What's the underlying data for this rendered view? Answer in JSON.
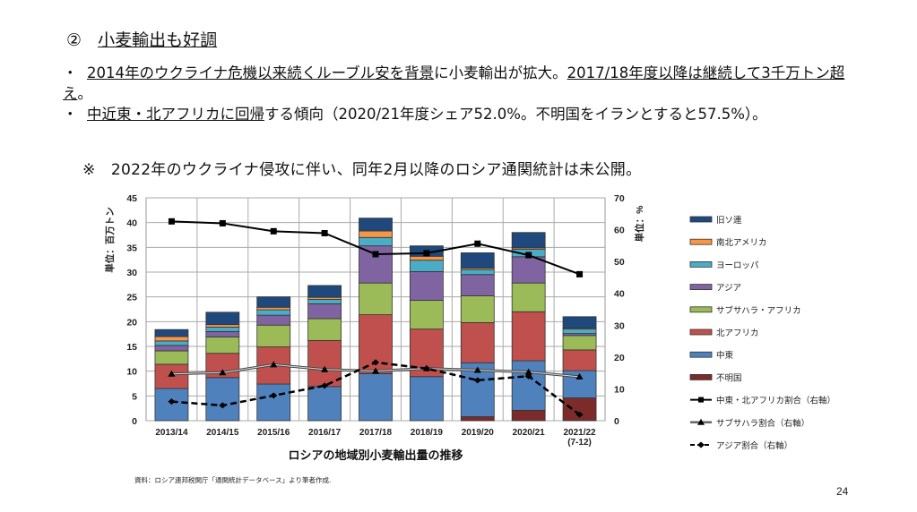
{
  "heading": {
    "number": "②",
    "title": "小麦輸出も好調"
  },
  "bullets": [
    {
      "marker": "・",
      "parts": [
        {
          "text": "2014年のウクライナ危機以来続くルーブル安を背景",
          "u": true
        },
        {
          "text": "に小麦輸出が拡大。",
          "u": false
        },
        {
          "text": "2017/18年度以降は継続して3千万トン超え",
          "u": true
        },
        {
          "text": "。",
          "u": false
        }
      ]
    },
    {
      "marker": "・",
      "parts": [
        {
          "text": "中近東・北アフリカに回帰",
          "u": true
        },
        {
          "text": "する傾向（2020/21年度シェア52.0%。不明国をイランとすると57.5%）。",
          "u": false
        }
      ]
    }
  ],
  "note": "※　2022年のウクライナ侵攻に伴い、同年2月以降のロシア通関統計は未公開。",
  "source": "資料：ロシア連邦税関庁「通関統計データベース」より筆者作成.",
  "page_number": "24",
  "chart_data": {
    "type": "bar",
    "stacked": true,
    "title": "ロシアの地域別小麦輸出量の推移",
    "ylabel": "単位：百万トン",
    "y2label": "単位：%",
    "ylim": [
      0,
      45
    ],
    "y2lim": [
      0,
      70
    ],
    "yticks": [
      0,
      5,
      10,
      15,
      20,
      25,
      30,
      35,
      40,
      45
    ],
    "y2ticks": [
      0,
      10,
      20,
      30,
      40,
      50,
      60,
      70
    ],
    "grid": true,
    "legend_position": "right",
    "categories": [
      "2013/14",
      "2014/15",
      "2015/16",
      "2016/17",
      "2017/18",
      "2018/19",
      "2019/20",
      "2020/21",
      "2021/22\n(7-12)"
    ],
    "series": [
      {
        "name": "不明国",
        "color": "#7b2c2a",
        "values": [
          0,
          0,
          0,
          0,
          0,
          0,
          0.8,
          2.1,
          4.6
        ]
      },
      {
        "name": "中東",
        "color": "#4f81bd",
        "values": [
          6.5,
          8.7,
          7.4,
          6.9,
          9.5,
          8.9,
          10.9,
          10.0,
          5.5
        ]
      },
      {
        "name": "北アフリカ",
        "color": "#c0504d",
        "values": [
          4.9,
          4.9,
          7.5,
          9.3,
          11.9,
          9.6,
          8.1,
          9.9,
          4.2
        ]
      },
      {
        "name": "サブサハラ・アフリカ",
        "color": "#9bbb59",
        "values": [
          2.7,
          3.3,
          4.4,
          4.4,
          6.4,
          5.8,
          5.4,
          5.8,
          2.9
        ]
      },
      {
        "name": "アジア",
        "color": "#8064a2",
        "values": [
          1.1,
          1.1,
          2.0,
          3.0,
          7.5,
          5.8,
          4.3,
          5.3,
          0.4
        ]
      },
      {
        "name": "ヨーロッパ",
        "color": "#4bacc6",
        "values": [
          0.9,
          0.9,
          1.1,
          0.9,
          1.7,
          2.3,
          1.0,
          1.5,
          0.9
        ]
      },
      {
        "name": "南北アメリカ",
        "color": "#f79646",
        "values": [
          0.9,
          0.5,
          0.5,
          0.4,
          1.3,
          0.8,
          0.3,
          0.3,
          0.2
        ]
      },
      {
        "name": "旧ソ連",
        "color": "#1f497d",
        "values": [
          1.4,
          2.5,
          2.1,
          2.4,
          2.6,
          2.1,
          3.1,
          3.1,
          2.3
        ]
      }
    ],
    "line_series": [
      {
        "name": "中東・北アフリカ割合（右軸）",
        "style": "solid-square",
        "values": [
          62.6,
          62.0,
          59.5,
          58.9,
          52.3,
          52.6,
          55.6,
          52.0,
          46.0
        ]
      },
      {
        "name": "サブサハラ割合（右軸）",
        "style": "double-triangle",
        "values": [
          14.7,
          15.1,
          17.6,
          16.1,
          15.6,
          16.4,
          15.9,
          15.3,
          13.8
        ]
      },
      {
        "name": "アジア割合（右軸）",
        "style": "dashed-diamond",
        "values": [
          6.0,
          4.8,
          7.9,
          11.0,
          18.3,
          16.4,
          12.7,
          14.0,
          1.9
        ]
      }
    ],
    "legend": [
      "旧ソ連",
      "南北アメリカ",
      "ヨーロッパ",
      "アジア",
      "サブサハラ・アフリカ",
      "北アフリカ",
      "中東",
      "不明国",
      "中東・北アフリカ割合（右軸）",
      "サブサハラ割合（右軸）",
      "アジア割合（右軸）"
    ]
  }
}
